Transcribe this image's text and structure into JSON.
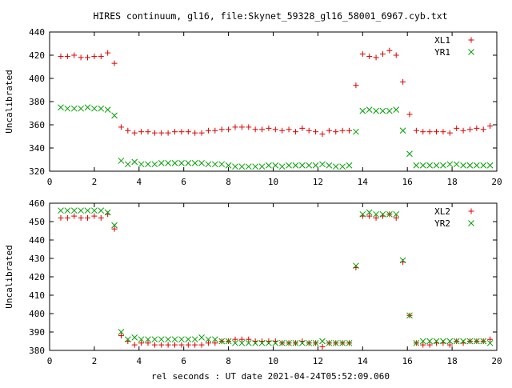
{
  "figure_title": "HIRES continuum, gl16, file:Skynet_59328_gl16_58001_6967.cyb.txt",
  "xlabel": "rel seconds : UT date 2021-04-24T05:52:09.060",
  "colors": {
    "red": "#e00000",
    "green": "#00a000"
  },
  "chart_data": [
    {
      "type": "scatter",
      "ylabel": "Uncalibrated",
      "xlim": [
        0,
        20
      ],
      "ylim": [
        320,
        440
      ],
      "xticks": [
        "0",
        "2",
        "4",
        "6",
        "8",
        "10",
        "12",
        "14",
        "16",
        "18",
        "20"
      ],
      "yticks": [
        "320",
        "340",
        "360",
        "380",
        "400",
        "420",
        "440"
      ],
      "legend_position": "top-right",
      "series": [
        {
          "name": "XL1",
          "marker": "plus",
          "color": "#e00000",
          "x": [
            0.5,
            0.8,
            1.1,
            1.4,
            1.7,
            2.0,
            2.3,
            2.6,
            2.9,
            3.2,
            3.5,
            3.8,
            4.1,
            4.4,
            4.7,
            5.0,
            5.3,
            5.6,
            5.9,
            6.2,
            6.5,
            6.8,
            7.1,
            7.4,
            7.7,
            8.0,
            8.3,
            8.6,
            8.9,
            9.2,
            9.5,
            9.8,
            10.1,
            10.4,
            10.7,
            11.0,
            11.3,
            11.6,
            11.9,
            12.2,
            12.5,
            12.8,
            13.1,
            13.4,
            13.7,
            14.0,
            14.3,
            14.6,
            14.9,
            15.2,
            15.5,
            15.8,
            16.1,
            16.4,
            16.7,
            17.0,
            17.3,
            17.6,
            17.9,
            18.2,
            18.5,
            18.8,
            19.1,
            19.4,
            19.7
          ],
          "y": [
            419,
            419,
            420,
            418,
            418,
            419,
            419,
            422,
            413,
            358,
            355,
            353,
            354,
            354,
            353,
            353,
            353,
            354,
            354,
            354,
            353,
            353,
            355,
            355,
            356,
            356,
            358,
            358,
            358,
            356,
            356,
            357,
            356,
            355,
            356,
            354,
            357,
            355,
            354,
            352,
            355,
            354,
            355,
            355,
            394,
            421,
            419,
            418,
            421,
            424,
            420,
            397,
            369,
            355,
            354,
            354,
            354,
            354,
            353,
            357,
            355,
            356,
            357,
            356,
            359
          ]
        },
        {
          "name": "YR1",
          "marker": "cross",
          "color": "#00a000",
          "x": [
            0.5,
            0.8,
            1.1,
            1.4,
            1.7,
            2.0,
            2.3,
            2.6,
            2.9,
            3.2,
            3.5,
            3.8,
            4.1,
            4.4,
            4.7,
            5.0,
            5.3,
            5.6,
            5.9,
            6.2,
            6.5,
            6.8,
            7.1,
            7.4,
            7.7,
            8.0,
            8.3,
            8.6,
            8.9,
            9.2,
            9.5,
            9.8,
            10.1,
            10.4,
            10.7,
            11.0,
            11.3,
            11.6,
            11.9,
            12.2,
            12.5,
            12.8,
            13.1,
            13.4,
            13.7,
            14.0,
            14.3,
            14.6,
            14.9,
            15.2,
            15.5,
            15.8,
            16.1,
            16.4,
            16.7,
            17.0,
            17.3,
            17.6,
            17.9,
            18.2,
            18.5,
            18.8,
            19.1,
            19.4,
            19.7
          ],
          "y": [
            375,
            374,
            374,
            374,
            375,
            374,
            374,
            373,
            368,
            329,
            326,
            328,
            326,
            326,
            326,
            327,
            327,
            327,
            327,
            327,
            327,
            327,
            326,
            326,
            326,
            325,
            324,
            324,
            324,
            324,
            324,
            325,
            325,
            324,
            325,
            325,
            325,
            325,
            325,
            326,
            325,
            324,
            324,
            325,
            354,
            372,
            373,
            372,
            372,
            372,
            373,
            355,
            335,
            325,
            325,
            325,
            325,
            325,
            326,
            326,
            325,
            325,
            325,
            325,
            325
          ]
        }
      ]
    },
    {
      "type": "scatter",
      "ylabel": "Uncalibrated",
      "xlim": [
        0,
        20
      ],
      "ylim": [
        380,
        460
      ],
      "xticks": [
        "0",
        "2",
        "4",
        "6",
        "8",
        "10",
        "12",
        "14",
        "16",
        "18",
        "20"
      ],
      "yticks": [
        "380",
        "390",
        "400",
        "410",
        "420",
        "430",
        "440",
        "450",
        "460"
      ],
      "legend_position": "top-right",
      "series": [
        {
          "name": "XL2",
          "marker": "plus",
          "color": "#e00000",
          "x": [
            0.5,
            0.8,
            1.1,
            1.4,
            1.7,
            2.0,
            2.3,
            2.6,
            2.9,
            3.2,
            3.5,
            3.8,
            4.1,
            4.4,
            4.7,
            5.0,
            5.3,
            5.6,
            5.9,
            6.2,
            6.5,
            6.8,
            7.1,
            7.4,
            7.7,
            8.0,
            8.3,
            8.6,
            8.9,
            9.2,
            9.5,
            9.8,
            10.1,
            10.4,
            10.7,
            11.0,
            11.3,
            11.6,
            11.9,
            12.2,
            12.5,
            12.8,
            13.1,
            13.4,
            13.7,
            14.0,
            14.3,
            14.6,
            14.9,
            15.2,
            15.5,
            15.8,
            16.1,
            16.4,
            16.7,
            17.0,
            17.3,
            17.6,
            17.9,
            18.2,
            18.5,
            18.8,
            19.1,
            19.4,
            19.7
          ],
          "y": [
            452,
            452,
            453,
            452,
            452,
            453,
            452,
            454,
            446,
            388,
            385,
            383,
            384,
            384,
            383,
            383,
            383,
            383,
            383,
            383,
            383,
            383,
            384,
            384,
            385,
            385,
            386,
            386,
            386,
            385,
            385,
            385,
            385,
            384,
            384,
            384,
            385,
            384,
            384,
            382,
            384,
            384,
            384,
            384,
            425,
            453,
            453,
            452,
            453,
            454,
            452,
            428,
            399,
            384,
            383,
            383,
            384,
            384,
            383,
            385,
            384,
            385,
            385,
            385,
            386
          ]
        },
        {
          "name": "YR2",
          "marker": "cross",
          "color": "#00a000",
          "x": [
            0.5,
            0.8,
            1.1,
            1.4,
            1.7,
            2.0,
            2.3,
            2.6,
            2.9,
            3.2,
            3.5,
            3.8,
            4.1,
            4.4,
            4.7,
            5.0,
            5.3,
            5.6,
            5.9,
            6.2,
            6.5,
            6.8,
            7.1,
            7.4,
            7.7,
            8.0,
            8.3,
            8.6,
            8.9,
            9.2,
            9.5,
            9.8,
            10.1,
            10.4,
            10.7,
            11.0,
            11.3,
            11.6,
            11.9,
            12.2,
            12.5,
            12.8,
            13.1,
            13.4,
            13.7,
            14.0,
            14.3,
            14.6,
            14.9,
            15.2,
            15.5,
            15.8,
            16.1,
            16.4,
            16.7,
            17.0,
            17.3,
            17.6,
            17.9,
            18.2,
            18.5,
            18.8,
            19.1,
            19.4,
            19.7
          ],
          "y": [
            456,
            456,
            456,
            456,
            456,
            456,
            456,
            455,
            448,
            390,
            386,
            387,
            386,
            386,
            386,
            386,
            386,
            386,
            386,
            386,
            386,
            387,
            386,
            386,
            385,
            385,
            384,
            384,
            384,
            384,
            384,
            384,
            384,
            384,
            384,
            384,
            384,
            384,
            384,
            385,
            384,
            384,
            384,
            384,
            426,
            454,
            455,
            454,
            454,
            454,
            454,
            429,
            399,
            384,
            385,
            385,
            385,
            385,
            385,
            385,
            385,
            385,
            385,
            385,
            384
          ]
        }
      ]
    }
  ]
}
